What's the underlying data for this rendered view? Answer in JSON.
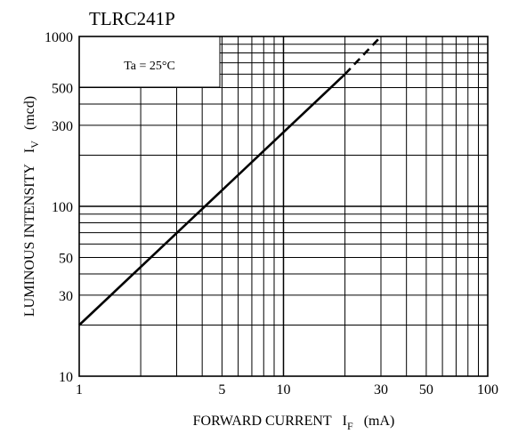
{
  "chart_data": {
    "type": "line",
    "title": "TLRC241P",
    "xlabel": "FORWARD CURRENT",
    "xlabel_symbol": "I",
    "xlabel_subscript": "F",
    "xlabel_unit": "(mA)",
    "ylabel": "LUMINOUS INTENSITY",
    "ylabel_symbol": "I",
    "ylabel_subscript": "V",
    "ylabel_unit": "(mcd)",
    "x_scale": "log",
    "y_scale": "log",
    "xlim": [
      1,
      100
    ],
    "ylim": [
      10,
      1000
    ],
    "grid": true,
    "x_ticks": [
      1,
      5,
      10,
      30,
      50,
      100
    ],
    "x_tick_labels": [
      "1",
      "5",
      "10",
      "30",
      "50",
      "100"
    ],
    "y_ticks": [
      10,
      30,
      50,
      100,
      300,
      500,
      1000
    ],
    "y_tick_labels": [
      "10",
      "30",
      "50",
      "100",
      "300",
      "500",
      "1000"
    ],
    "annotation": "Ta = 25°C",
    "series": [
      {
        "style": "solid",
        "x": [
          1,
          20
        ],
        "y": [
          20,
          600
        ]
      },
      {
        "style": "dashed",
        "x": [
          20,
          30
        ],
        "y": [
          600,
          1000
        ]
      }
    ]
  }
}
